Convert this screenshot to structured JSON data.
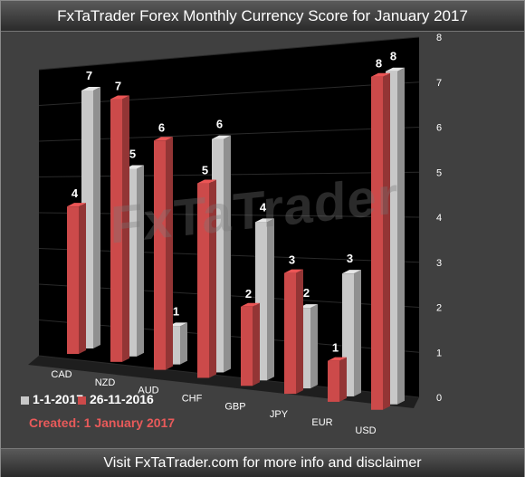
{
  "title": "FxTaTrader Forex Monthly Currency Score for January 2017",
  "footer": "Visit FxTaTrader.com for more info and disclaimer",
  "created": "Created: 1 January 2017",
  "watermark": "FxTaTrader",
  "colors": {
    "series_gray": "#c8c8c8",
    "series_red": "#cc4a4a",
    "background": "#000000"
  },
  "chart_data": {
    "type": "bar",
    "style": "3d-clustered",
    "categories": [
      "CAD",
      "NZD",
      "AUD",
      "CHF",
      "GBP",
      "JPY",
      "EUR",
      "USD"
    ],
    "series": [
      {
        "name": "26-11-2016",
        "values": [
          4,
          7,
          6,
          5,
          2,
          3,
          1,
          8
        ]
      },
      {
        "name": "1-1-2017",
        "values": [
          7,
          5,
          1,
          6,
          4,
          2,
          3,
          8
        ]
      }
    ],
    "yticks": [
      "0",
      "1",
      "2",
      "3",
      "4",
      "5",
      "6",
      "7",
      "8"
    ],
    "ylim": [
      0,
      8
    ],
    "legend_position": "bottom-left",
    "data_labels": true
  }
}
